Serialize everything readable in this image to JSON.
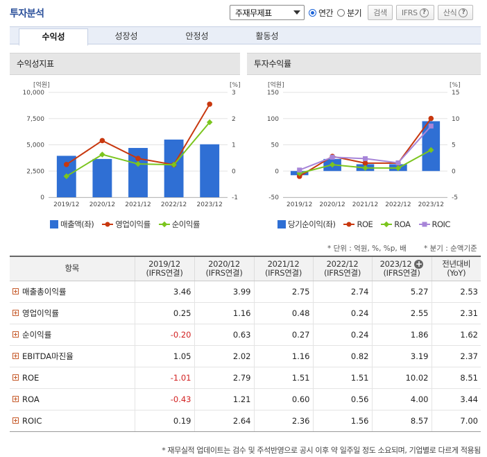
{
  "title": "투자분석",
  "controls": {
    "select_value": "주재무제표",
    "radio_annual": "연간",
    "radio_quarter": "분기",
    "search_button": "검색",
    "ifrs_button": "IFRS",
    "formula_button": "산식"
  },
  "tabs": [
    "수익성",
    "성장성",
    "안정성",
    "활동성"
  ],
  "active_tab": "수익성",
  "colors": {
    "bar": "#2f6fd4",
    "line_red": "#c8380f",
    "line_green": "#7bc51e",
    "line_purple": "#a785d8"
  },
  "chart1_title": "수익성지표",
  "chart2_title": "투자수익률",
  "chart_data": [
    {
      "type": "bar",
      "title": "수익성지표",
      "categories": [
        "2019/12",
        "2020/12",
        "2021/12",
        "2022/12",
        "2023/12"
      ],
      "y_left_unit": "[억원]",
      "y_right_unit": "[%]",
      "y_left_ticks": [
        "10,000",
        "7,500",
        "5,000",
        "2,500",
        "0"
      ],
      "y_right_ticks": [
        "3",
        "2",
        "1",
        "0",
        "-1"
      ],
      "ylim_left": [
        0,
        10000
      ],
      "ylim_right": [
        -1,
        3
      ],
      "series": [
        {
          "name": "매출액(좌)",
          "kind": "bar",
          "axis": "left",
          "values": [
            3950,
            3650,
            4700,
            5500,
            5050
          ]
        },
        {
          "name": "영업이익률",
          "kind": "line",
          "axis": "right",
          "values": [
            0.25,
            1.16,
            0.48,
            0.24,
            2.55
          ]
        },
        {
          "name": "순이익률",
          "kind": "line",
          "axis": "right",
          "values": [
            -0.2,
            0.63,
            0.27,
            0.24,
            1.86
          ]
        }
      ]
    },
    {
      "type": "bar",
      "title": "투자수익률",
      "categories": [
        "2019/12",
        "2020/12",
        "2021/12",
        "2022/12",
        "2023/12"
      ],
      "y_left_unit": "[억원]",
      "y_right_unit": "[%]",
      "y_left_ticks": [
        "150",
        "100",
        "50",
        "0",
        "-50"
      ],
      "y_right_ticks": [
        "15",
        "10",
        "5",
        "0",
        "-5"
      ],
      "ylim_left": [
        -50,
        150
      ],
      "ylim_right": [
        -5,
        15
      ],
      "series": [
        {
          "name": "당기순이익(좌)",
          "kind": "bar",
          "axis": "left",
          "values": [
            -8,
            23,
            13,
            13,
            95
          ]
        },
        {
          "name": "ROE",
          "kind": "line",
          "axis": "right",
          "values": [
            -1.01,
            2.79,
            1.51,
            1.51,
            10.02
          ]
        },
        {
          "name": "ROA",
          "kind": "line",
          "axis": "right",
          "values": [
            -0.43,
            1.21,
            0.6,
            0.56,
            4.0
          ]
        },
        {
          "name": "ROIC",
          "kind": "line",
          "axis": "right",
          "values": [
            0.19,
            2.64,
            2.36,
            1.56,
            8.57
          ]
        }
      ]
    }
  ],
  "notes": {
    "unit": "* 단위 : 억원, %, %p, 배",
    "quarter": "* 분기 : 순액기준"
  },
  "table": {
    "header_item": "항목",
    "columns": [
      {
        "l1": "2019/12",
        "l2": "(IFRS연결)"
      },
      {
        "l1": "2020/12",
        "l2": "(IFRS연결)"
      },
      {
        "l1": "2021/12",
        "l2": "(IFRS연결)"
      },
      {
        "l1": "2022/12",
        "l2": "(IFRS연결)"
      },
      {
        "l1": "2023/12",
        "l2": "(IFRS연결)"
      },
      {
        "l1": "전년대비",
        "l2": "(YoY)"
      }
    ],
    "rows": [
      {
        "label": "매출총이익률",
        "values": [
          "3.46",
          "3.99",
          "2.75",
          "2.74",
          "5.27",
          "2.53"
        ]
      },
      {
        "label": "영업이익률",
        "values": [
          "0.25",
          "1.16",
          "0.48",
          "0.24",
          "2.55",
          "2.31"
        ]
      },
      {
        "label": "순이익률",
        "values": [
          "-0.20",
          "0.63",
          "0.27",
          "0.24",
          "1.86",
          "1.62"
        ]
      },
      {
        "label": "EBITDA마진율",
        "values": [
          "1.05",
          "2.02",
          "1.16",
          "0.82",
          "3.19",
          "2.37"
        ]
      },
      {
        "label": "ROE",
        "values": [
          "-1.01",
          "2.79",
          "1.51",
          "1.51",
          "10.02",
          "8.51"
        ]
      },
      {
        "label": "ROA",
        "values": [
          "-0.43",
          "1.21",
          "0.60",
          "0.56",
          "4.00",
          "3.44"
        ]
      },
      {
        "label": "ROIC",
        "values": [
          "0.19",
          "2.64",
          "2.36",
          "1.56",
          "8.57",
          "7.00"
        ]
      }
    ]
  },
  "footnote": "* 재무실적 업데이트는 검수 및 주석반영으로 공시 이후 약 일주일 정도 소요되며, 기업별로 다르게 적용됨"
}
